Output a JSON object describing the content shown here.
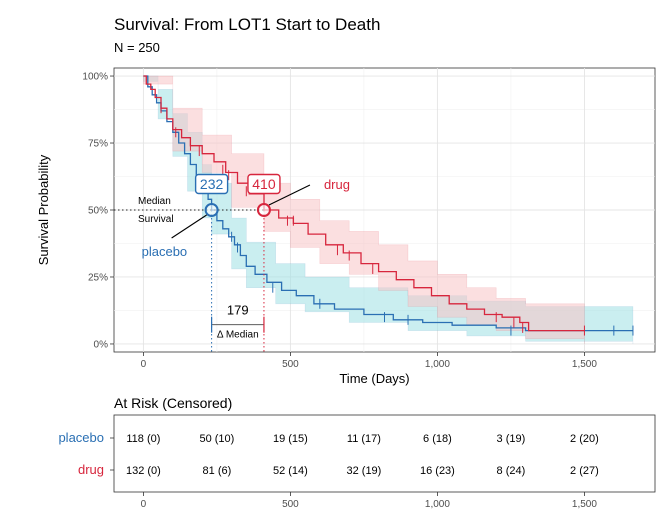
{
  "chart_data": {
    "type": "line",
    "title": "Survival: From LOT1 Start to Death",
    "subtitle": "N = 250",
    "xlabel": "Time (Days)",
    "ylabel": "Survival Probability",
    "xlim": [
      -100,
      1740
    ],
    "ylim": [
      -0.03,
      1.03
    ],
    "x_ticks": [
      0,
      500,
      1000,
      1500
    ],
    "x_tick_labels": [
      "0",
      "500",
      "1,000",
      "1,500"
    ],
    "y_ticks": [
      0,
      0.25,
      0.5,
      0.75,
      1.0
    ],
    "y_tick_labels": [
      "0%",
      "25%",
      "50%",
      "75%",
      "100%"
    ],
    "grid": true,
    "series": [
      {
        "name": "placebo",
        "color": "#2a6fb3",
        "band_color": "#9fe0e4",
        "points": [
          [
            0,
            1.0
          ],
          [
            15,
            0.96
          ],
          [
            30,
            0.93
          ],
          [
            45,
            0.9
          ],
          [
            60,
            0.87
          ],
          [
            80,
            0.83
          ],
          [
            100,
            0.79
          ],
          [
            120,
            0.75
          ],
          [
            140,
            0.71
          ],
          [
            160,
            0.67
          ],
          [
            180,
            0.63
          ],
          [
            200,
            0.58
          ],
          [
            220,
            0.54
          ],
          [
            232,
            0.5
          ],
          [
            250,
            0.46
          ],
          [
            270,
            0.43
          ],
          [
            290,
            0.4
          ],
          [
            310,
            0.37
          ],
          [
            330,
            0.33
          ],
          [
            350,
            0.29
          ],
          [
            380,
            0.26
          ],
          [
            420,
            0.23
          ],
          [
            470,
            0.2
          ],
          [
            520,
            0.18
          ],
          [
            580,
            0.15
          ],
          [
            650,
            0.13
          ],
          [
            750,
            0.11
          ],
          [
            850,
            0.09
          ],
          [
            950,
            0.08
          ],
          [
            1050,
            0.07
          ],
          [
            1200,
            0.06
          ],
          [
            1300,
            0.05
          ],
          [
            1665,
            0.05
          ]
        ],
        "ci_upper": [
          [
            0,
            1.0
          ],
          [
            50,
            0.95
          ],
          [
            100,
            0.86
          ],
          [
            150,
            0.79
          ],
          [
            200,
            0.67
          ],
          [
            232,
            0.6
          ],
          [
            300,
            0.47
          ],
          [
            350,
            0.38
          ],
          [
            450,
            0.3
          ],
          [
            550,
            0.25
          ],
          [
            700,
            0.21
          ],
          [
            900,
            0.18
          ],
          [
            1100,
            0.16
          ],
          [
            1300,
            0.14
          ],
          [
            1665,
            0.13
          ]
        ],
        "ci_lower": [
          [
            0,
            0.98
          ],
          [
            50,
            0.84
          ],
          [
            100,
            0.7
          ],
          [
            150,
            0.57
          ],
          [
            200,
            0.47
          ],
          [
            232,
            0.41
          ],
          [
            300,
            0.28
          ],
          [
            350,
            0.21
          ],
          [
            450,
            0.15
          ],
          [
            550,
            0.12
          ],
          [
            700,
            0.08
          ],
          [
            900,
            0.05
          ],
          [
            1100,
            0.03
          ],
          [
            1300,
            0.01
          ],
          [
            1665,
            0.0
          ]
        ],
        "censored": [
          [
            180,
            0.63
          ],
          [
            300,
            0.4
          ],
          [
            320,
            0.36
          ],
          [
            440,
            0.21
          ],
          [
            600,
            0.15
          ],
          [
            820,
            0.1
          ],
          [
            900,
            0.09
          ],
          [
            1250,
            0.05
          ],
          [
            1600,
            0.05
          ],
          [
            1665,
            0.05
          ]
        ],
        "median": 232,
        "median_label": "232",
        "annotation": "placebo"
      },
      {
        "name": "drug",
        "color": "#d7263d",
        "band_color": "#f8c4c6",
        "points": [
          [
            0,
            1.0
          ],
          [
            10,
            0.97
          ],
          [
            25,
            0.95
          ],
          [
            40,
            0.92
          ],
          [
            60,
            0.88
          ],
          [
            80,
            0.84
          ],
          [
            100,
            0.8
          ],
          [
            130,
            0.77
          ],
          [
            160,
            0.74
          ],
          [
            200,
            0.71
          ],
          [
            240,
            0.68
          ],
          [
            280,
            0.64
          ],
          [
            320,
            0.6
          ],
          [
            360,
            0.56
          ],
          [
            410,
            0.5
          ],
          [
            460,
            0.47
          ],
          [
            510,
            0.45
          ],
          [
            560,
            0.41
          ],
          [
            620,
            0.37
          ],
          [
            680,
            0.34
          ],
          [
            740,
            0.3
          ],
          [
            800,
            0.27
          ],
          [
            860,
            0.24
          ],
          [
            920,
            0.21
          ],
          [
            980,
            0.18
          ],
          [
            1040,
            0.15
          ],
          [
            1100,
            0.13
          ],
          [
            1160,
            0.11
          ],
          [
            1220,
            0.1
          ],
          [
            1280,
            0.08
          ],
          [
            1310,
            0.05
          ],
          [
            1500,
            0.05
          ]
        ],
        "ci_upper": [
          [
            0,
            1.0
          ],
          [
            100,
            0.88
          ],
          [
            200,
            0.78
          ],
          [
            300,
            0.71
          ],
          [
            410,
            0.6
          ],
          [
            500,
            0.54
          ],
          [
            600,
            0.46
          ],
          [
            700,
            0.42
          ],
          [
            800,
            0.37
          ],
          [
            900,
            0.31
          ],
          [
            1000,
            0.26
          ],
          [
            1100,
            0.21
          ],
          [
            1200,
            0.17
          ],
          [
            1300,
            0.15
          ],
          [
            1500,
            0.13
          ]
        ],
        "ci_lower": [
          [
            0,
            0.97
          ],
          [
            100,
            0.72
          ],
          [
            200,
            0.64
          ],
          [
            300,
            0.51
          ],
          [
            410,
            0.42
          ],
          [
            500,
            0.36
          ],
          [
            600,
            0.3
          ],
          [
            700,
            0.26
          ],
          [
            800,
            0.2
          ],
          [
            900,
            0.14
          ],
          [
            1000,
            0.1
          ],
          [
            1100,
            0.07
          ],
          [
            1200,
            0.05
          ],
          [
            1300,
            0.02
          ],
          [
            1500,
            0.0
          ]
        ],
        "censored": [
          [
            60,
            0.88
          ],
          [
            110,
            0.79
          ],
          [
            160,
            0.74
          ],
          [
            190,
            0.72
          ],
          [
            270,
            0.65
          ],
          [
            290,
            0.63
          ],
          [
            350,
            0.57
          ],
          [
            490,
            0.46
          ],
          [
            510,
            0.46
          ],
          [
            660,
            0.35
          ],
          [
            700,
            0.33
          ],
          [
            780,
            0.28
          ],
          [
            1200,
            0.1
          ],
          [
            1260,
            0.08
          ],
          [
            1290,
            0.06
          ],
          [
            1500,
            0.05
          ]
        ],
        "median": 410,
        "median_label": "410",
        "annotation": "drug"
      }
    ],
    "median_annotation": [
      "Median",
      "Survival"
    ],
    "delta_value": "179",
    "delta_label": "Δ Median",
    "risk_table": {
      "title": "At Risk (Censored)",
      "times": [
        0,
        250,
        500,
        750,
        1000,
        1250,
        1500
      ],
      "x_tick_labels": [
        "0",
        "500",
        "1,000",
        "1,500"
      ],
      "rows": [
        {
          "group": "placebo",
          "color": "#2a6fb3",
          "cells": [
            "118 (0)",
            "50 (10)",
            "19 (15)",
            "11 (17)",
            "6 (18)",
            "3 (19)",
            "2 (20)"
          ]
        },
        {
          "group": "drug",
          "color": "#d7263d",
          "cells": [
            "132 (0)",
            "81 (6)",
            "52 (14)",
            "32 (19)",
            "16 (23)",
            "8 (24)",
            "2 (27)"
          ]
        }
      ]
    }
  }
}
